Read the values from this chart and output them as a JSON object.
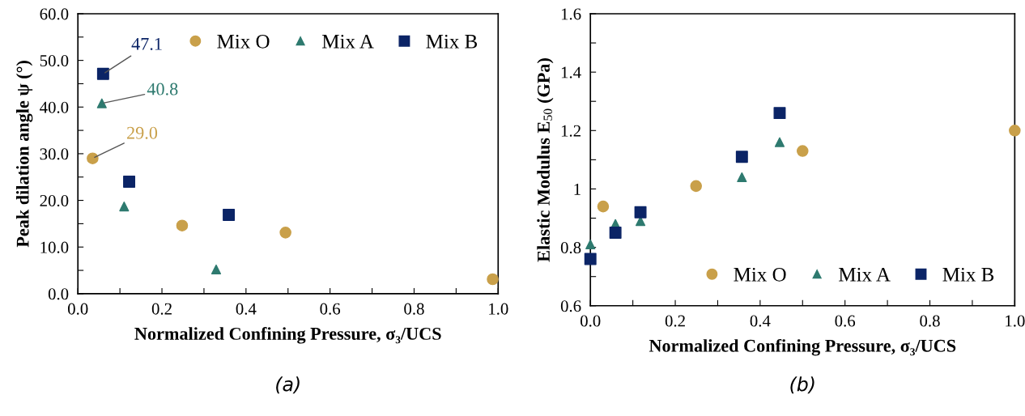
{
  "chart_data": [
    {
      "type": "scatter",
      "xlabel": "Normalized Confining Pressure, σ₃/UCS",
      "ylabel": "Peak dilation angle ψ (°)",
      "xlim": [
        0,
        1
      ],
      "ylim": [
        0,
        60
      ],
      "xticks": [
        {
          "value": 0,
          "label": "0.0"
        },
        {
          "value": 0.1,
          "label": null
        },
        {
          "value": 0.2,
          "label": "0.2"
        },
        {
          "value": 0.3,
          "label": null
        },
        {
          "value": 0.4,
          "label": "0.4"
        },
        {
          "value": 0.5,
          "label": null
        },
        {
          "value": 0.6,
          "label": "0.6"
        },
        {
          "value": 0.7,
          "label": null
        },
        {
          "value": 0.8,
          "label": "0.8"
        },
        {
          "value": 0.9,
          "label": null
        },
        {
          "value": 1,
          "label": "1.0"
        }
      ],
      "yticks": [
        {
          "value": 0,
          "label": "0.0"
        },
        {
          "value": 5,
          "label": null
        },
        {
          "value": 10,
          "label": "10.0"
        },
        {
          "value": 15,
          "label": null
        },
        {
          "value": 20,
          "label": "20.0"
        },
        {
          "value": 25,
          "label": null
        },
        {
          "value": 30,
          "label": "30.0"
        },
        {
          "value": 35,
          "label": null
        },
        {
          "value": 40,
          "label": "40.0"
        },
        {
          "value": 45,
          "label": null
        },
        {
          "value": 50,
          "label": "50.0"
        },
        {
          "value": 55,
          "label": null
        },
        {
          "value": 60,
          "label": "60.0"
        }
      ],
      "grid": false,
      "legend": "top right",
      "series": [
        {
          "name": "Mix O",
          "color": "#c9a04a",
          "marker": "circle",
          "x": [
            0.035,
            0.248,
            0.494,
            0.987
          ],
          "values": [
            29.0,
            14.6,
            13.1,
            3.1
          ]
        },
        {
          "name": "Mix A",
          "color": "#2e7a6f",
          "marker": "triangle",
          "x": [
            0.057,
            0.11,
            0.329
          ],
          "values": [
            40.8,
            18.7,
            5.2
          ]
        },
        {
          "name": "Mix B",
          "color": "#0b2466",
          "marker": "square",
          "x": [
            0.06,
            0.122,
            0.359
          ],
          "values": [
            47.1,
            24.0,
            16.9
          ]
        }
      ],
      "annotations": [
        {
          "text": "47.1",
          "x": 0.06,
          "y": 47.1
        },
        {
          "text": "40.8",
          "x": 0.057,
          "y": 40.8
        },
        {
          "text": "29.0",
          "x": 0.035,
          "y": 29.0
        },
        "(a)"
      ]
    },
    {
      "type": "scatter",
      "xlabel": "Normalized Confining Pressure, σ₃/UCS",
      "ylabel": "Elastic Modulus E$_{50}$ (GPa)",
      "xlim": [
        0,
        1
      ],
      "ylim": [
        0.6,
        1.6
      ],
      "xticks": [
        {
          "value": 0,
          "label": "0.0"
        },
        {
          "value": 0.1,
          "label": null
        },
        {
          "value": 0.2,
          "label": "0.2"
        },
        {
          "value": 0.3,
          "label": null
        },
        {
          "value": 0.4,
          "label": "0.4"
        },
        {
          "value": 0.5,
          "label": null
        },
        {
          "value": 0.6,
          "label": "0.6"
        },
        {
          "value": 0.7,
          "label": null
        },
        {
          "value": 0.8,
          "label": "0.8"
        },
        {
          "value": 0.9,
          "label": null
        },
        {
          "value": 1,
          "label": "1.0"
        }
      ],
      "yticks": [
        0.6,
        {
          "value": 0.7,
          "label": null
        },
        0.8,
        {
          "value": 0.9,
          "label": null
        },
        1,
        {
          "value": 1.1,
          "label": null
        },
        1.2,
        {
          "value": 1.3,
          "label": null
        },
        1.4,
        {
          "value": 1.5,
          "label": null
        },
        1.6
      ],
      "grid": false,
      "legend": "bottom right",
      "series": [
        {
          "name": "Mix O",
          "color": "#c9a04a",
          "marker": "circle",
          "x": [
            0.03,
            0.249,
            0.5,
            1.0
          ],
          "values": [
            0.94,
            1.01,
            1.13,
            1.2
          ]
        },
        {
          "name": "Mix A",
          "color": "#2e7a6f",
          "marker": "triangle",
          "x": [
            0.0,
            0.059,
            0.118,
            0.357,
            0.446
          ],
          "values": [
            0.81,
            0.88,
            0.89,
            1.04,
            1.16
          ]
        },
        {
          "name": "Mix B",
          "color": "#0b2466",
          "marker": "square",
          "x": [
            0.0,
            0.059,
            0.118,
            0.357,
            0.446
          ],
          "values": [
            0.76,
            0.85,
            0.92,
            1.11,
            1.26
          ]
        }
      ],
      "annotations": [
        "(b)"
      ]
    }
  ]
}
